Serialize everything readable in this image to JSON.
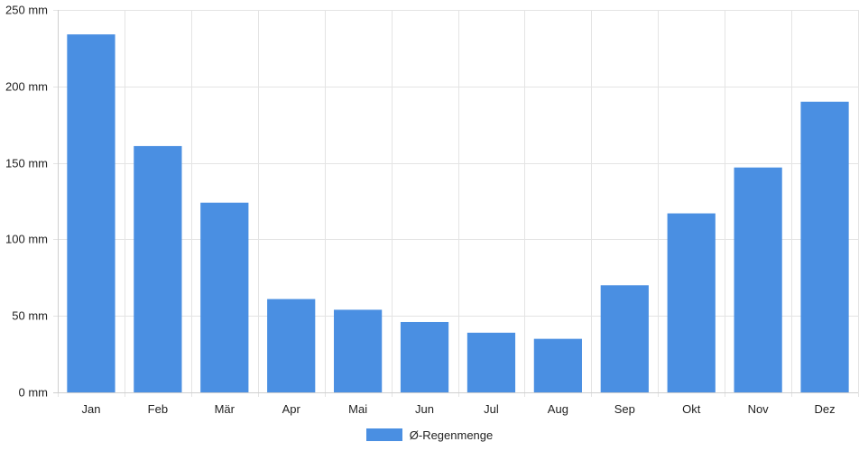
{
  "chart_data": {
    "type": "bar",
    "categories": [
      "Jan",
      "Feb",
      "Mär",
      "Apr",
      "Mai",
      "Jun",
      "Jul",
      "Aug",
      "Sep",
      "Okt",
      "Nov",
      "Dez"
    ],
    "series": [
      {
        "name": "Ø-Regenmenge",
        "values": [
          234,
          161,
          124,
          61,
          54,
          46,
          39,
          35,
          70,
          117,
          147,
          190
        ]
      }
    ],
    "ylim": [
      0,
      250
    ],
    "yticks": [
      0,
      50,
      100,
      150,
      200,
      250
    ],
    "ytick_suffix": " mm",
    "grid": true,
    "legend": "bottom-center",
    "bar_color": "#4a8fe2"
  }
}
